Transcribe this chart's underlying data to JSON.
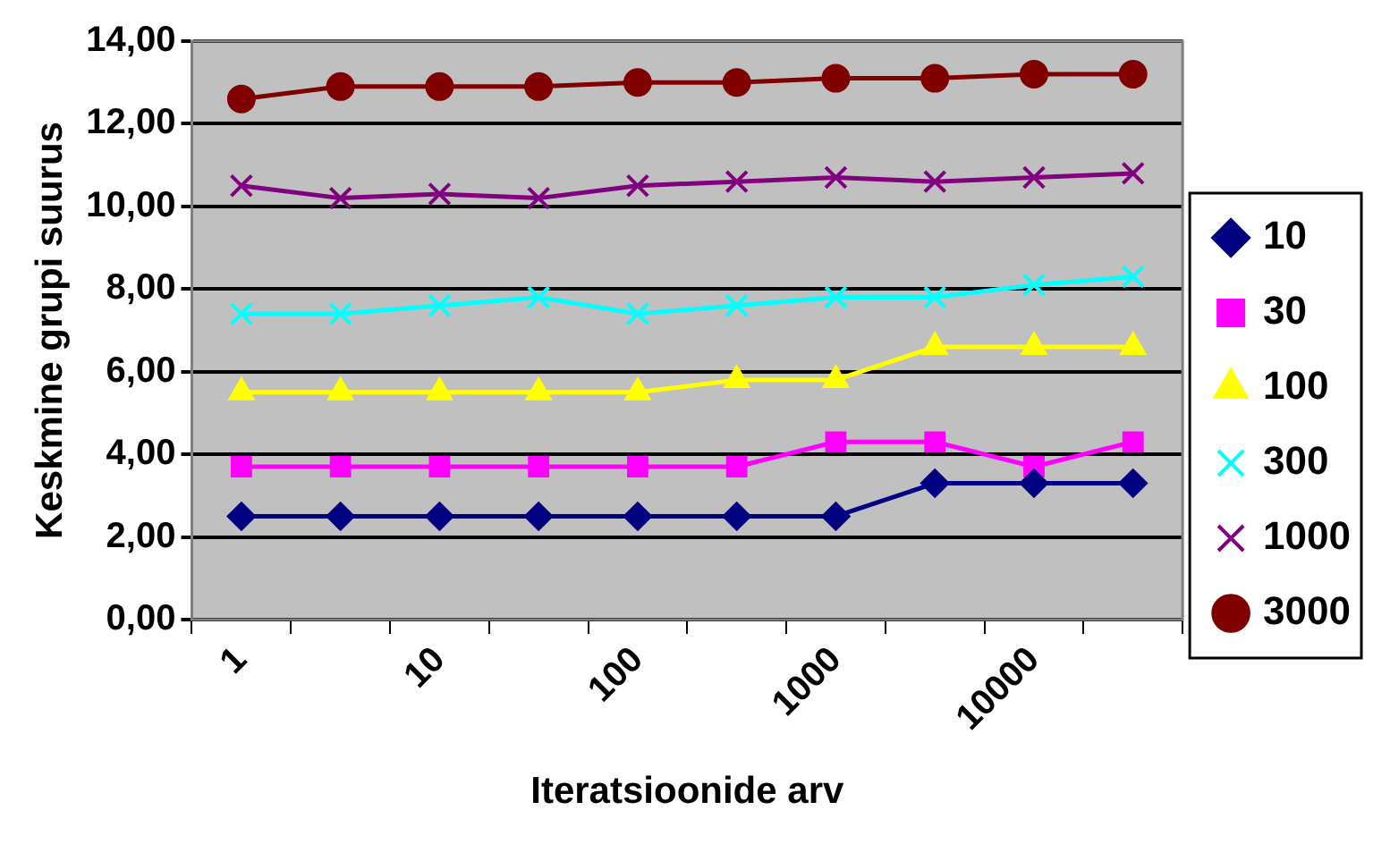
{
  "chart_data": {
    "type": "line",
    "xlabel": "Iteratsioonide arv",
    "ylabel": "Keskmine grupi suurus",
    "categories": [
      "1",
      null,
      "10",
      null,
      "100",
      null,
      "1000",
      null,
      "10000",
      null
    ],
    "ylim": [
      0,
      14
    ],
    "yticks": [
      {
        "value": 0,
        "label": "0,00"
      },
      {
        "value": 2,
        "label": "2,00"
      },
      {
        "value": 4,
        "label": "4,00"
      },
      {
        "value": 6,
        "label": "6,00"
      },
      {
        "value": 8,
        "label": "8,00"
      },
      {
        "value": 10,
        "label": "10,00"
      },
      {
        "value": 12,
        "label": "12,00"
      },
      {
        "value": 14,
        "label": "14,00"
      }
    ],
    "grid": "y",
    "legend": "right",
    "series": [
      {
        "name": "10",
        "color": "#000080",
        "marker": "diamond",
        "values": [
          2.5,
          2.5,
          2.5,
          2.5,
          2.5,
          2.5,
          2.5,
          3.3,
          3.3,
          3.3
        ]
      },
      {
        "name": "30",
        "color": "#ff00ff",
        "marker": "square",
        "values": [
          3.7,
          3.7,
          3.7,
          3.7,
          3.7,
          3.7,
          4.3,
          4.3,
          3.7,
          4.3
        ]
      },
      {
        "name": "100",
        "color": "#ffff00",
        "marker": "triangle",
        "values": [
          5.5,
          5.5,
          5.5,
          5.5,
          5.5,
          5.8,
          5.8,
          6.6,
          6.6,
          6.6
        ]
      },
      {
        "name": "300",
        "color": "#00ffff",
        "marker": "cross",
        "values": [
          7.4,
          7.4,
          7.6,
          7.8,
          7.4,
          7.6,
          7.8,
          7.8,
          8.1,
          8.3
        ]
      },
      {
        "name": "1000",
        "color": "#800080",
        "marker": "cross",
        "values": [
          10.5,
          10.2,
          10.3,
          10.2,
          10.5,
          10.6,
          10.7,
          10.6,
          10.7,
          10.8
        ]
      },
      {
        "name": "3000",
        "color": "#800000",
        "marker": "circle",
        "values": [
          12.6,
          12.9,
          12.9,
          12.9,
          13.0,
          13.0,
          13.1,
          13.1,
          13.2,
          13.2
        ]
      }
    ]
  }
}
